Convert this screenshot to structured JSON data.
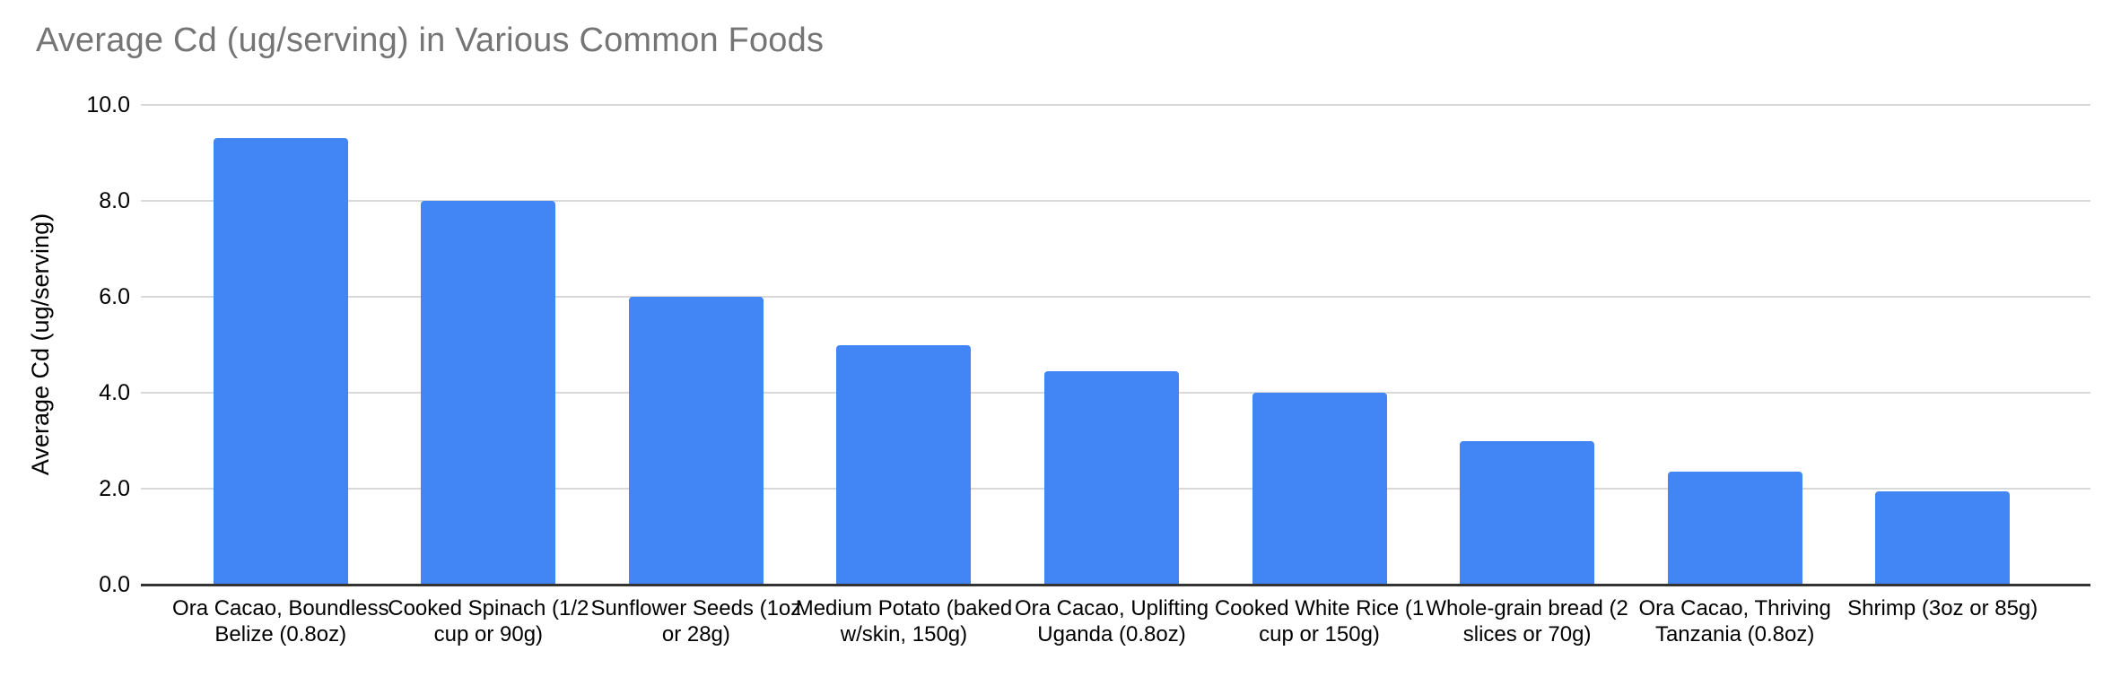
{
  "chart_data": {
    "type": "bar",
    "title": "Average Cd (ug/serving) in Various Common Foods",
    "xlabel": "",
    "ylabel": "Average Cd (ug/serving)",
    "ylim": [
      0,
      10
    ],
    "yticks": [
      {
        "value": 0,
        "label": "0.0"
      },
      {
        "value": 2,
        "label": "2.0"
      },
      {
        "value": 4,
        "label": "4.0"
      },
      {
        "value": 6,
        "label": "6.0"
      },
      {
        "value": 8,
        "label": "8.0"
      },
      {
        "value": 10,
        "label": "10.0"
      }
    ],
    "categories": [
      "Ora Cacao, Boundless Belize (0.8oz)",
      "Cooked Spinach (1/2 cup or 90g)",
      "Sunflower Seeds (1oz or 28g)",
      "Medium Potato (baked w/skin, 150g)",
      "Ora Cacao, Uplifting Uganda (0.8oz)",
      "Cooked White Rice (1 cup or 150g)",
      "Whole-grain bread (2 slices or 70g)",
      "Ora Cacao, Thriving Tanzania (0.8oz)",
      "Shrimp (3oz or 85g)"
    ],
    "values": [
      9.3,
      8.0,
      6.0,
      5.0,
      4.45,
      4.0,
      3.0,
      2.35,
      1.95
    ],
    "grid": true,
    "legend": "none"
  },
  "colors": {
    "bar": "#4285f4",
    "title_text": "#757575",
    "axis_text": "#000000",
    "gridline": "#d9d9d9",
    "baseline": "#333333",
    "background": "#ffffff"
  }
}
